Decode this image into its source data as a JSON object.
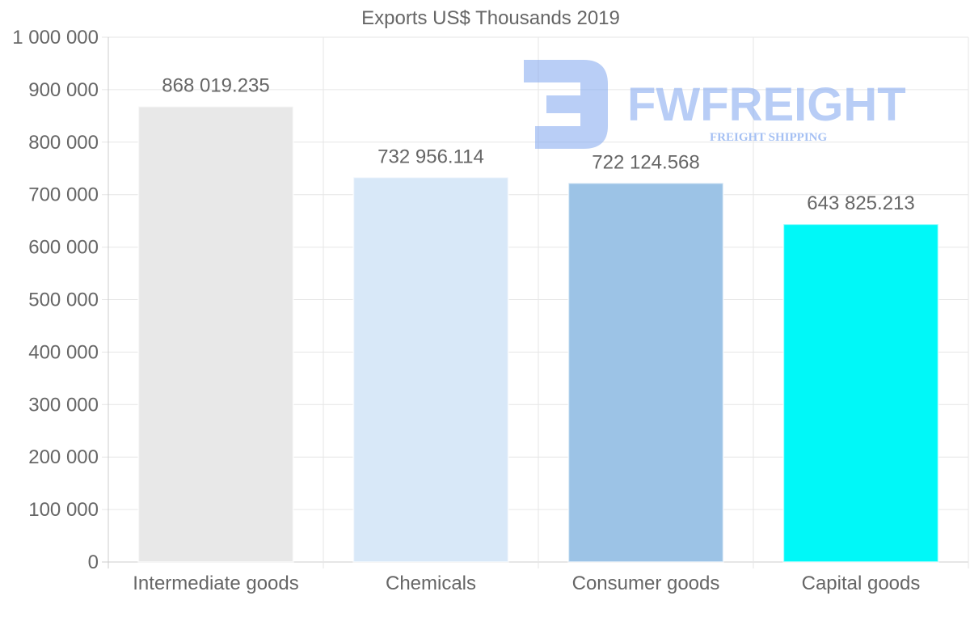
{
  "chart_data": {
    "type": "bar",
    "title": "Exports US$ Thousands 2019",
    "categories": [
      "Intermediate goods",
      "Chemicals",
      "Consumer goods",
      "Capital goods"
    ],
    "values": [
      868019.235,
      732956.114,
      722124.568,
      643825.213
    ],
    "value_labels": [
      "868 019.235",
      "732 956.114",
      "722 124.568",
      "643 825.213"
    ],
    "bar_colors": [
      "#e8e8e8",
      "#d8e8f8",
      "#9cc3e6",
      "#00f8f8"
    ],
    "ylim": [
      0,
      1000000
    ],
    "y_ticks": [
      0,
      100000,
      200000,
      300000,
      400000,
      500000,
      600000,
      700000,
      800000,
      900000,
      1000000
    ],
    "y_tick_labels": [
      "0",
      "100 000",
      "200 000",
      "300 000",
      "400 000",
      "500 000",
      "600 000",
      "700 000",
      "800 000",
      "900 000",
      "1 000 000"
    ],
    "xlabel": "",
    "ylabel": "",
    "grid": true,
    "legend": "none"
  },
  "watermark": {
    "name": "FWFREIGHT",
    "tagline": "FREIGHT SHIPPING",
    "color": "#7fa6ef"
  }
}
